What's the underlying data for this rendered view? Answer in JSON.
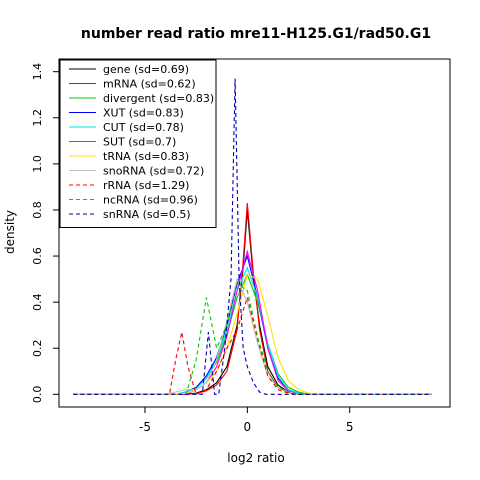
{
  "chart_data": {
    "type": "line",
    "title": "number read ratio mre11-H125.G1/rad50.G1",
    "xlabel": "log2 ratio",
    "ylabel": "density",
    "xlim": [
      -9.2,
      9.9
    ],
    "ylim": [
      -0.055,
      1.455
    ],
    "x_ticks": [
      -5,
      0,
      5
    ],
    "x_tick_labels": [
      "-5",
      "0",
      "5"
    ],
    "y_ticks": [
      0,
      0.2,
      0.4,
      0.6,
      0.8,
      1.0,
      1.2,
      1.4
    ],
    "y_tick_labels": [
      "0.0",
      "0.2",
      "0.4",
      "0.6",
      "0.8",
      "1.0",
      "1.2",
      "1.4"
    ],
    "grid": false,
    "legend_position": "top-left",
    "series": [
      {
        "name": "gene (sd=0.69)",
        "color": "#000000",
        "dash": "solid",
        "x": [
          -8.5,
          -3.2,
          -2.5,
          -2.0,
          -1.5,
          -1.0,
          -0.5,
          -0.2,
          0.0,
          0.3,
          0.6,
          1.0,
          1.5,
          2.0,
          2.5,
          9.0
        ],
        "y": [
          0,
          0,
          0.005,
          0.02,
          0.05,
          0.12,
          0.3,
          0.55,
          0.8,
          0.5,
          0.3,
          0.12,
          0.04,
          0.01,
          0,
          0
        ]
      },
      {
        "name": "mRNA (sd=0.62)",
        "color": "#ff0000",
        "dash": "solid",
        "x": [
          -8.5,
          -3.0,
          -2.5,
          -2.0,
          -1.5,
          -1.0,
          -0.5,
          -0.2,
          0.0,
          0.3,
          0.6,
          1.0,
          1.5,
          2.0,
          2.5,
          9.0
        ],
        "y": [
          0,
          0,
          0.003,
          0.015,
          0.04,
          0.1,
          0.28,
          0.58,
          0.83,
          0.52,
          0.28,
          0.1,
          0.03,
          0.008,
          0,
          0
        ]
      },
      {
        "name": "divergent (sd=0.83)",
        "color": "#00cd00",
        "dash": "solid",
        "x": [
          -8.5,
          -3.5,
          -3.0,
          -2.5,
          -2.0,
          -1.5,
          -1.0,
          -0.5,
          0.0,
          0.5,
          1.0,
          1.5,
          2.0,
          2.5,
          3.0,
          9.0
        ],
        "y": [
          0,
          0,
          0.01,
          0.03,
          0.07,
          0.14,
          0.26,
          0.42,
          0.52,
          0.4,
          0.22,
          0.09,
          0.03,
          0.01,
          0,
          0
        ]
      },
      {
        "name": "XUT (sd=0.83)",
        "color": "#0000ff",
        "dash": "solid",
        "x": [
          -8.5,
          -3.5,
          -3.0,
          -2.5,
          -2.0,
          -1.5,
          -1.0,
          -0.5,
          0.0,
          0.5,
          1.0,
          1.5,
          2.0,
          2.5,
          3.0,
          9.0
        ],
        "y": [
          0,
          0,
          0.01,
          0.03,
          0.08,
          0.16,
          0.3,
          0.48,
          0.6,
          0.42,
          0.2,
          0.07,
          0.02,
          0.005,
          0,
          0
        ]
      },
      {
        "name": "CUT (sd=0.78)",
        "color": "#00e5ee",
        "dash": "solid",
        "x": [
          -8.5,
          -3.5,
          -3.0,
          -2.5,
          -2.0,
          -1.5,
          -1.0,
          -0.5,
          0.0,
          0.5,
          1.0,
          1.5,
          2.0,
          2.5,
          3.0,
          9.0
        ],
        "y": [
          0,
          0,
          0.01,
          0.025,
          0.07,
          0.15,
          0.28,
          0.45,
          0.55,
          0.42,
          0.22,
          0.08,
          0.02,
          0.005,
          0,
          0
        ]
      },
      {
        "name": "SUT (sd=0.7)",
        "color": "#ff00ff",
        "dash": "solid",
        "x": [
          -8.5,
          -3.0,
          -2.5,
          -2.0,
          -1.5,
          -1.0,
          -0.5,
          0.0,
          0.5,
          1.0,
          1.5,
          2.0,
          2.5,
          9.0
        ],
        "y": [
          0,
          0,
          0.02,
          0.05,
          0.12,
          0.25,
          0.45,
          0.62,
          0.45,
          0.2,
          0.06,
          0.015,
          0,
          0
        ]
      },
      {
        "name": "tRNA (sd=0.83)",
        "color": "#ffe000",
        "dash": "solid",
        "x": [
          -8.5,
          -3.5,
          -3.0,
          -2.5,
          -2.0,
          -1.5,
          -1.0,
          -0.5,
          0.0,
          0.5,
          1.0,
          1.5,
          2.0,
          2.5,
          3.0,
          3.5,
          9.0
        ],
        "y": [
          0,
          0,
          0.005,
          0.02,
          0.05,
          0.1,
          0.2,
          0.35,
          0.52,
          0.5,
          0.34,
          0.16,
          0.06,
          0.02,
          0.005,
          0,
          0
        ]
      },
      {
        "name": "snoRNA (sd=0.72)",
        "color": "#bebebe",
        "dash": "solid",
        "x": [
          -8.5,
          -4.0,
          -3.5,
          -3.0,
          -2.5,
          -2.0,
          -1.5,
          -1.0,
          -0.5,
          0.0,
          0.5,
          1.0,
          1.5,
          2.0,
          2.5,
          9.0
        ],
        "y": [
          0,
          0,
          0.01,
          0.02,
          0.02,
          0.05,
          0.15,
          0.32,
          0.5,
          0.4,
          0.22,
          0.08,
          0.03,
          0.01,
          0,
          0
        ]
      },
      {
        "name": "rRNA (sd=1.29)",
        "color": "#ff0000",
        "dash": "dashed",
        "x": [
          -8.5,
          -3.8,
          -3.5,
          -3.2,
          -2.9,
          -2.5,
          -2.0,
          -1.5,
          -1.0,
          -0.5,
          0.0,
          0.5,
          1.0,
          1.5,
          2.0,
          2.5,
          9.0
        ],
        "y": [
          0,
          0,
          0.15,
          0.27,
          0.12,
          0.0,
          0.02,
          0.1,
          0.2,
          0.28,
          0.42,
          0.24,
          0.08,
          0.02,
          0.005,
          0,
          0
        ]
      },
      {
        "name": "ncRNA (sd=0.96)",
        "color": "#00cd00",
        "dash": "dashed",
        "x": [
          -8.5,
          -3.0,
          -2.5,
          -2.0,
          -1.5,
          -1.0,
          -0.5,
          0.0,
          0.5,
          1.0,
          1.5,
          2.0,
          2.5,
          9.0
        ],
        "y": [
          0,
          0,
          0.15,
          0.42,
          0.2,
          0.3,
          0.48,
          0.45,
          0.25,
          0.1,
          0.03,
          0.01,
          0,
          0
        ]
      },
      {
        "name": "snRNA (sd=0.5)",
        "color": "#0000b0",
        "dash": "dashed",
        "x": [
          -8.5,
          -2.2,
          -1.9,
          -1.6,
          -1.4,
          -1.1,
          -0.8,
          -0.6,
          -0.4,
          -0.2,
          0.0,
          0.3,
          0.6,
          0.9,
          1.2,
          9.0
        ],
        "y": [
          0,
          0,
          0.27,
          0.0,
          0.0,
          0.2,
          0.5,
          1.37,
          0.5,
          0.2,
          0.12,
          0.05,
          0.01,
          0.0,
          0,
          0
        ]
      }
    ]
  }
}
